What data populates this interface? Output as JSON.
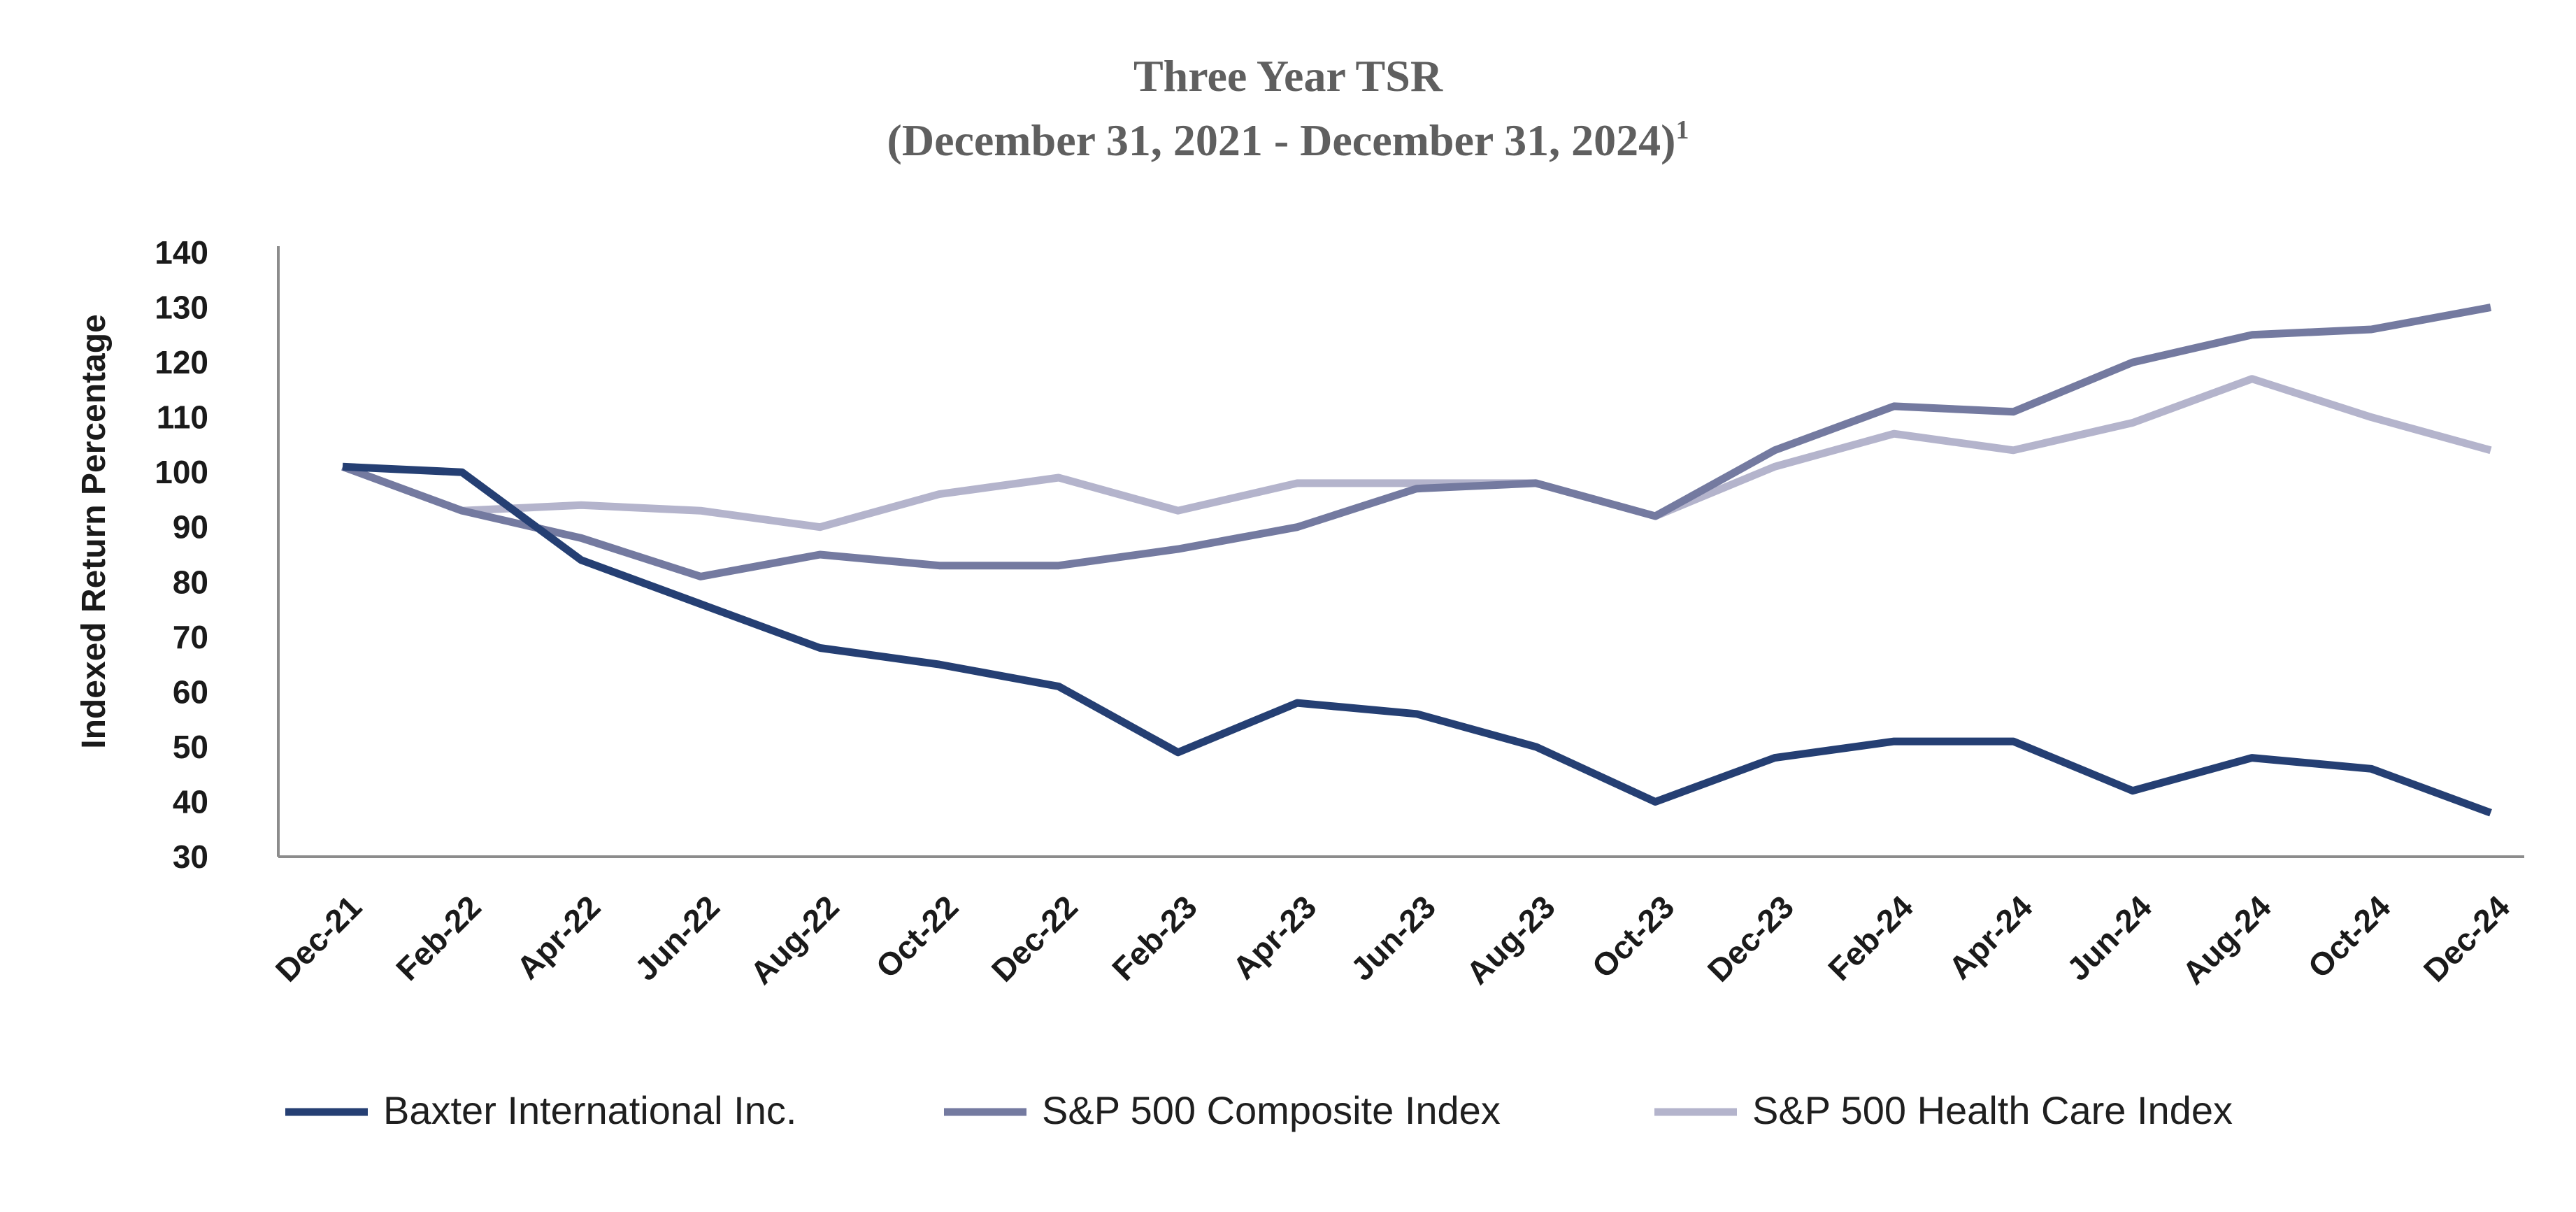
{
  "chart_data": {
    "type": "line",
    "title": "Three Year TSR",
    "subtitle": "(December 31, 2021 - December 31, 2024)",
    "subtitle_footnote": "1",
    "xlabel": "",
    "ylabel": "Indexed Return Percentage",
    "ylim": [
      30,
      140
    ],
    "yticks": [
      30,
      40,
      50,
      60,
      70,
      80,
      90,
      100,
      110,
      120,
      130,
      140
    ],
    "grid": false,
    "legend_position": "bottom",
    "categories": [
      "Dec-21",
      "Feb-22",
      "Apr-22",
      "Jun-22",
      "Aug-22",
      "Oct-22",
      "Dec-22",
      "Feb-23",
      "Apr-23",
      "Jun-23",
      "Aug-23",
      "Oct-23",
      "Dec-23",
      "Feb-24",
      "Apr-24",
      "Jun-24",
      "Aug-24",
      "Oct-24",
      "Dec-24"
    ],
    "series": [
      {
        "name": "Baxter International Inc.",
        "color": "#253f73",
        "values": [
          101,
          100,
          84,
          76,
          68,
          65,
          61,
          49,
          58,
          56,
          50,
          40,
          48,
          51,
          51,
          42,
          48,
          46,
          38
        ]
      },
      {
        "name": "S&P 500 Composite Index",
        "color": "#747aa0",
        "values": [
          101,
          93,
          88,
          81,
          85,
          83,
          83,
          86,
          90,
          97,
          98,
          92,
          104,
          112,
          111,
          120,
          125,
          126,
          130
        ]
      },
      {
        "name": "S&P 500 Health Care Index",
        "color": "#b4b4cc",
        "values": [
          101,
          93,
          94,
          93,
          90,
          96,
          99,
          93,
          98,
          98,
          98,
          92,
          101,
          107,
          104,
          109,
          117,
          110,
          104
        ]
      }
    ]
  }
}
